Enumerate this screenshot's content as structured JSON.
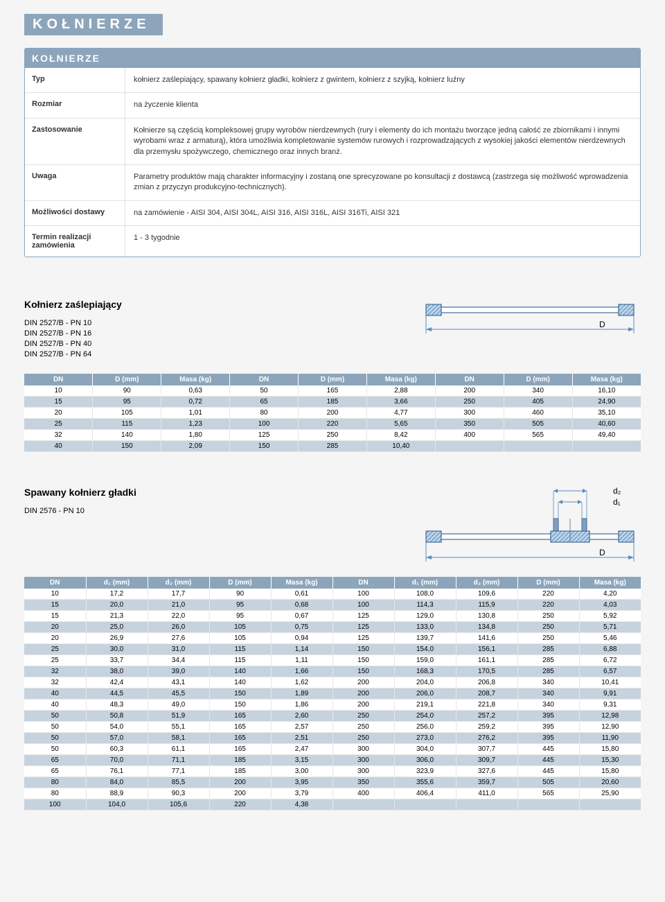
{
  "page": {
    "background_color": "#f5f5f5",
    "banner_bg": "#8ca5bb",
    "banner_text": "KOŁNIERZE"
  },
  "info_panel": {
    "header": "KOŁNIERZE",
    "rows": [
      {
        "label": "Typ",
        "value": "kołnierz zaślepiający, spawany kołnierz gładki, kołnierz z gwintem, kołnierz z szyjką, kołnierz luźny"
      },
      {
        "label": "Rozmiar",
        "value": "na życzenie klienta"
      },
      {
        "label": "Zastosowanie",
        "value": "Kołnierze są częścią kompleksowej grupy wyrobów nierdzewnych (rury i elementy do ich montażu tworzące jedną całość ze zbiornikami i innymi wyrobami wraz z armaturą), która umożliwia kompletowanie systemów rurowych i rozprowadzających z wysokiej jakości elementów nierdzewnych dla przemysłu spożywczego, chemicznego oraz innych branż."
      },
      {
        "label": "Uwaga",
        "value": "Parametry produktów mają charakter informacyjny i zostaną one sprecyzowane po konsultacji z dostawcą (zastrzega się możliwość wprowadzenia zmian z przyczyn produkcyjno-technicznych)."
      },
      {
        "label": "Możliwości dostawy",
        "value": "na zamówienie - AISI 304, AISI 304L, AISI 316, AISI 316L, AISI 316Ti, AISI 321"
      },
      {
        "label": "Termin realizacji zamówienia",
        "value": "1 - 3 tygodnie"
      }
    ]
  },
  "section1": {
    "title": "Kołnierz zaślepiający",
    "din": [
      "DIN 2527/B - PN 10",
      "DIN 2527/B - PN 16",
      "DIN 2527/B - PN 40",
      "DIN 2527/B - PN 64"
    ],
    "diagram": {
      "label_D": "D",
      "line_color": "#5a8bbd",
      "hatch_color": "#bfd4e8",
      "outline_color": "#3f6d9a"
    },
    "headers": [
      "DN",
      "D (mm)",
      "Masa (kg)",
      "DN",
      "D (mm)",
      "Masa (kg)",
      "DN",
      "D (mm)",
      "Masa (kg)"
    ],
    "rows": [
      [
        "10",
        "90",
        "0,63",
        "50",
        "165",
        "2,88",
        "200",
        "340",
        "16,10"
      ],
      [
        "15",
        "95",
        "0,72",
        "65",
        "185",
        "3,66",
        "250",
        "405",
        "24,90"
      ],
      [
        "20",
        "105",
        "1,01",
        "80",
        "200",
        "4,77",
        "300",
        "460",
        "35,10"
      ],
      [
        "25",
        "115",
        "1,23",
        "100",
        "220",
        "5,65",
        "350",
        "505",
        "40,60"
      ],
      [
        "32",
        "140",
        "1,80",
        "125",
        "250",
        "8,42",
        "400",
        "565",
        "49,40"
      ],
      [
        "40",
        "150",
        "2,09",
        "150",
        "285",
        "10,40",
        "",
        "",
        ""
      ]
    ]
  },
  "section2": {
    "title": "Spawany kołnierz gładki",
    "din": [
      "DIN 2576 - PN 10"
    ],
    "diagram": {
      "label_D": "D",
      "label_d1": "d₁",
      "label_d2": "d₂",
      "line_color": "#5a8bbd",
      "hatch_color": "#bfd4e8",
      "outline_color": "#3f6d9a"
    },
    "headers": [
      "DN",
      "d₁ (mm)",
      "d₂ (mm)",
      "D (mm)",
      "Masa (kg)",
      "DN",
      "d₁ (mm)",
      "d₂ (mm)",
      "D (mm)",
      "Masa (kg)"
    ],
    "rows": [
      [
        "10",
        "17,2",
        "17,7",
        "90",
        "0,61",
        "100",
        "108,0",
        "109,6",
        "220",
        "4,20"
      ],
      [
        "15",
        "20,0",
        "21,0",
        "95",
        "0,68",
        "100",
        "114,3",
        "115,9",
        "220",
        "4,03"
      ],
      [
        "15",
        "21,3",
        "22,0",
        "95",
        "0,67",
        "125",
        "129,0",
        "130,8",
        "250",
        "5,92"
      ],
      [
        "20",
        "25,0",
        "26,0",
        "105",
        "0,75",
        "125",
        "133,0",
        "134,8",
        "250",
        "5,71"
      ],
      [
        "20",
        "26,9",
        "27,6",
        "105",
        "0,94",
        "125",
        "139,7",
        "141,6",
        "250",
        "5,46"
      ],
      [
        "25",
        "30,0",
        "31,0",
        "115",
        "1,14",
        "150",
        "154,0",
        "156,1",
        "285",
        "6,88"
      ],
      [
        "25",
        "33,7",
        "34,4",
        "115",
        "1,11",
        "150",
        "159,0",
        "161,1",
        "285",
        "6,72"
      ],
      [
        "32",
        "38,0",
        "39,0",
        "140",
        "1,66",
        "150",
        "168,3",
        "170,5",
        "285",
        "6,57"
      ],
      [
        "32",
        "42,4",
        "43,1",
        "140",
        "1,62",
        "200",
        "204,0",
        "206,8",
        "340",
        "10,41"
      ],
      [
        "40",
        "44,5",
        "45,5",
        "150",
        "1,89",
        "200",
        "206,0",
        "208,7",
        "340",
        "9,91"
      ],
      [
        "40",
        "48,3",
        "49,0",
        "150",
        "1,86",
        "200",
        "219,1",
        "221,8",
        "340",
        "9,31"
      ],
      [
        "50",
        "50,8",
        "51,9",
        "165",
        "2,60",
        "250",
        "254,0",
        "257,2",
        "395",
        "12,98"
      ],
      [
        "50",
        "54,0",
        "55,1",
        "165",
        "2,57",
        "250",
        "256,0",
        "259,2",
        "395",
        "12,90"
      ],
      [
        "50",
        "57,0",
        "58,1",
        "165",
        "2,51",
        "250",
        "273,0",
        "276,2",
        "395",
        "11,90"
      ],
      [
        "50",
        "60,3",
        "61,1",
        "165",
        "2,47",
        "300",
        "304,0",
        "307,7",
        "445",
        "15,80"
      ],
      [
        "65",
        "70,0",
        "71,1",
        "185",
        "3,15",
        "300",
        "306,0",
        "309,7",
        "445",
        "15,30"
      ],
      [
        "65",
        "76,1",
        "77,1",
        "185",
        "3,00",
        "300",
        "323,9",
        "327,6",
        "445",
        "15,80"
      ],
      [
        "80",
        "84,0",
        "85,5",
        "200",
        "3,95",
        "350",
        "355,6",
        "359,7",
        "505",
        "20,60"
      ],
      [
        "80",
        "88,9",
        "90,3",
        "200",
        "3,79",
        "400",
        "406,4",
        "411,0",
        "565",
        "25,90"
      ],
      [
        "100",
        "104,0",
        "105,6",
        "220",
        "4,38",
        "",
        "",
        "",
        "",
        ""
      ]
    ]
  },
  "table_style": {
    "header_bg": "#8ca5bb",
    "header_color": "#ffffff",
    "row_bg": "#ffffff",
    "alt_row_bg": "#c6d3de"
  }
}
